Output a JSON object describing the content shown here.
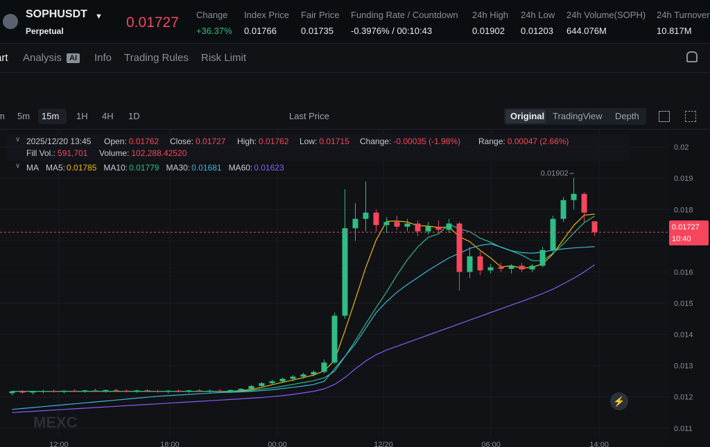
{
  "header": {
    "symbol": "SOPHUSDT",
    "contract": "Perpetual",
    "price": "0.01727",
    "stats": [
      {
        "label": "Change",
        "value": "+36.37%"
      },
      {
        "label": "Index Price",
        "value": "0.01766"
      },
      {
        "label": "Fair Price",
        "value": "0.01735"
      },
      {
        "label": "Funding Rate / Countdown",
        "value": "-0.3976% / 00:10:43"
      },
      {
        "label": "24h High",
        "value": "0.01902"
      },
      {
        "label": "24h Low",
        "value": "0.01203"
      },
      {
        "label": "24h Volume(SOPH)",
        "value": "644.076M"
      },
      {
        "label": "24h Turnover",
        "value": "10.817M"
      }
    ]
  },
  "tabs": [
    "art",
    "Analysis",
    "AI",
    "Info",
    "Trading Rules",
    "Risk Limit"
  ],
  "toolbar": {
    "intervals": [
      "m",
      "5m",
      "15m",
      "1H",
      "4H",
      "1D"
    ],
    "price_type": "Last Price",
    "views": [
      "Original",
      "TradingView",
      "Depth"
    ]
  },
  "chart_data": {
    "type": "candlestick",
    "legend": {
      "time": "2025/12/20 13:45",
      "fields": [
        {
          "label": "Open:",
          "value": "0.01762"
        },
        {
          "label": "Close:",
          "value": "0.01727"
        },
        {
          "label": "High:",
          "value": "0.01762"
        },
        {
          "label": "Low:",
          "value": "0.01715"
        },
        {
          "label": "Change:",
          "value": "-0.00035 (-1.98%)"
        },
        {
          "label": "Range:",
          "value": "0.00047 (2.66%)"
        },
        {
          "label": "Fill Vol.:",
          "value": "591,701"
        },
        {
          "label": "Volume:",
          "value": "102,288.42520"
        }
      ],
      "ma_title": "MA"
    },
    "x": [
      -2.25,
      -1.75,
      -1.25,
      -0.75,
      -0.25,
      0.25,
      0.75,
      1.25,
      1.75,
      2.25,
      2.75,
      3.25,
      3.75,
      4.25,
      4.75,
      5.25,
      5.75,
      6.25,
      6.75,
      7.25,
      7.75,
      8.25,
      8.75,
      9.25,
      9.75,
      10.25,
      10.75,
      11.25,
      11.75,
      12.25,
      12.75,
      13.25,
      13.75,
      14.25,
      14.75,
      15.25,
      15.75,
      16.25,
      16.75,
      17.25,
      17.75,
      18.25,
      18.75,
      19.25,
      19.75,
      20.25,
      20.75,
      21.25,
      21.75,
      22.25,
      22.75,
      23.25,
      23.75,
      24.25,
      24.75,
      25.25,
      25.75
    ],
    "open": [
      0.01212,
      0.01218,
      0.01214,
      0.01217,
      0.01219,
      0.01216,
      0.0122,
      0.01218,
      0.01221,
      0.01219,
      0.01222,
      0.0122,
      0.01218,
      0.01221,
      0.01219,
      0.01217,
      0.0122,
      0.01218,
      0.01221,
      0.01219,
      0.0122,
      0.01218,
      0.01222,
      0.01226,
      0.01235,
      0.01244,
      0.0125,
      0.01258,
      0.01265,
      0.01272,
      0.0128,
      0.0131,
      0.0146,
      0.0174,
      0.0177,
      0.0179,
      0.0175,
      0.0176,
      0.01745,
      0.01755,
      0.0173,
      0.01745,
      0.01735,
      0.01755,
      0.016,
      0.0165,
      0.01605,
      0.01615,
      0.0161,
      0.0162,
      0.01608,
      0.0162,
      0.0167,
      0.0177,
      0.0183,
      0.0185,
      0.01762
    ],
    "high": [
      0.0122,
      0.01222,
      0.0122,
      0.01223,
      0.01224,
      0.01221,
      0.01225,
      0.01223,
      0.01226,
      0.01224,
      0.01226,
      0.01224,
      0.01223,
      0.01225,
      0.01223,
      0.01222,
      0.01224,
      0.01223,
      0.01225,
      0.01224,
      0.01225,
      0.01224,
      0.01228,
      0.01238,
      0.01248,
      0.01255,
      0.01262,
      0.0127,
      0.01278,
      0.01285,
      0.0132,
      0.0147,
      0.01865,
      0.0182,
      0.0189,
      0.018,
      0.01775,
      0.0178,
      0.0177,
      0.01765,
      0.0176,
      0.01765,
      0.0177,
      0.0176,
      0.0168,
      0.01665,
      0.01625,
      0.0163,
      0.01625,
      0.0163,
      0.01625,
      0.0168,
      0.0178,
      0.0184,
      0.01902,
      0.01855,
      0.01762
    ],
    "low": [
      0.01205,
      0.0121,
      0.01208,
      0.01212,
      0.01214,
      0.01211,
      0.01215,
      0.01213,
      0.01216,
      0.01214,
      0.01217,
      0.01215,
      0.01213,
      0.01216,
      0.01214,
      0.01212,
      0.01215,
      0.01213,
      0.01216,
      0.01214,
      0.01215,
      0.01213,
      0.01218,
      0.01222,
      0.0123,
      0.01238,
      0.01244,
      0.0125,
      0.01258,
      0.01266,
      0.01275,
      0.01305,
      0.0145,
      0.017,
      0.0173,
      0.0173,
      0.01725,
      0.01735,
      0.0173,
      0.01715,
      0.0172,
      0.01725,
      0.01725,
      0.0154,
      0.0158,
      0.0159,
      0.01595,
      0.016,
      0.01595,
      0.016,
      0.016,
      0.01615,
      0.0166,
      0.0176,
      0.018,
      0.0176,
      0.01715
    ],
    "close": [
      0.01218,
      0.01214,
      0.01217,
      0.01219,
      0.01216,
      0.0122,
      0.01218,
      0.01221,
      0.01219,
      0.01222,
      0.0122,
      0.01218,
      0.01221,
      0.01219,
      0.01217,
      0.0122,
      0.01218,
      0.01221,
      0.01219,
      0.0122,
      0.01218,
      0.01222,
      0.01226,
      0.01235,
      0.01244,
      0.0125,
      0.01258,
      0.01265,
      0.01272,
      0.0128,
      0.0131,
      0.0146,
      0.0174,
      0.0177,
      0.0179,
      0.0175,
      0.0176,
      0.01745,
      0.01755,
      0.0173,
      0.01745,
      0.01735,
      0.01755,
      0.016,
      0.0165,
      0.01605,
      0.01615,
      0.0161,
      0.0162,
      0.01608,
      0.0162,
      0.0167,
      0.0177,
      0.0183,
      0.0185,
      0.0179,
      0.01727
    ],
    "series": [
      {
        "name": "MA5:",
        "color": "#f0b90b",
        "values": [
          0.01218,
          0.01218,
          0.01218,
          0.01218,
          0.01218,
          0.01218,
          0.01218,
          0.01218,
          0.01218,
          0.01218,
          0.01218,
          0.01218,
          0.01218,
          0.01218,
          0.01218,
          0.01218,
          0.01218,
          0.01218,
          0.01218,
          0.01218,
          0.01218,
          0.01218,
          0.0122,
          0.01224,
          0.01231,
          0.01239,
          0.01247,
          0.01254,
          0.01262,
          0.0127,
          0.01283,
          0.01317,
          0.01412,
          0.01512,
          0.01614,
          0.01702,
          0.01762,
          0.01763,
          0.0176,
          0.01748,
          0.01747,
          0.01742,
          0.01744,
          0.01713,
          0.01697,
          0.01669,
          0.01645,
          0.01616,
          0.0162,
          0.01612,
          0.01615,
          0.01626,
          0.01658,
          0.01704,
          0.01749,
          0.01782,
          0.01785
        ]
      },
      {
        "name": "MA10:",
        "color": "#2ebd85",
        "values": [
          0.01218,
          0.01218,
          0.01218,
          0.01218,
          0.01218,
          0.01218,
          0.01218,
          0.01218,
          0.01218,
          0.01218,
          0.01218,
          0.01218,
          0.01218,
          0.01218,
          0.01218,
          0.01218,
          0.01218,
          0.01218,
          0.01218,
          0.01218,
          0.01218,
          0.01218,
          0.01218,
          0.01221,
          0.01225,
          0.01229,
          0.01234,
          0.0124,
          0.01246,
          0.01252,
          0.01261,
          0.01282,
          0.01329,
          0.0138,
          0.01434,
          0.01486,
          0.01536,
          0.0159,
          0.01639,
          0.0168,
          0.01711,
          0.01722,
          0.01753,
          0.01738,
          0.01729,
          0.01708,
          0.01695,
          0.01679,
          0.01667,
          0.01654,
          0.01636,
          0.01636,
          0.0166,
          0.0169,
          0.01725,
          0.01758,
          0.01779
        ]
      },
      {
        "name": "MA30:",
        "color": "#3fb6d8",
        "values": [
          0.0116,
          0.01163,
          0.01166,
          0.01169,
          0.01172,
          0.01175,
          0.01178,
          0.01181,
          0.01184,
          0.01187,
          0.0119,
          0.01193,
          0.01196,
          0.01199,
          0.01202,
          0.01204,
          0.01206,
          0.01208,
          0.0121,
          0.01212,
          0.01214,
          0.01215,
          0.01216,
          0.01218,
          0.0122,
          0.01223,
          0.01227,
          0.01231,
          0.01235,
          0.0124,
          0.0125,
          0.0129,
          0.0133,
          0.0137,
          0.0142,
          0.0147,
          0.01505,
          0.01535,
          0.0156,
          0.01582,
          0.01605,
          0.01625,
          0.01645,
          0.0166,
          0.01675,
          0.01685,
          0.0169,
          0.0168,
          0.01668,
          0.01662,
          0.0166,
          0.01664,
          0.0167,
          0.01674,
          0.01677,
          0.01679,
          0.01681
        ]
      },
      {
        "name": "MA60:",
        "color": "#8b5cf6",
        "values": [
          0.0115,
          0.01152,
          0.01154,
          0.01156,
          0.01158,
          0.0116,
          0.01162,
          0.01164,
          0.01166,
          0.01168,
          0.0117,
          0.01172,
          0.01174,
          0.01176,
          0.01178,
          0.0118,
          0.01182,
          0.01184,
          0.01186,
          0.01188,
          0.0119,
          0.01192,
          0.01194,
          0.01196,
          0.01198,
          0.01201,
          0.01204,
          0.01208,
          0.01213,
          0.01218,
          0.01226,
          0.0124,
          0.01262,
          0.0129,
          0.01315,
          0.01335,
          0.0135,
          0.01362,
          0.01374,
          0.01386,
          0.01398,
          0.0141,
          0.01422,
          0.01434,
          0.01446,
          0.01458,
          0.0147,
          0.01482,
          0.01494,
          0.01506,
          0.01518,
          0.01531,
          0.01545,
          0.01562,
          0.0158,
          0.016,
          0.01623
        ]
      }
    ],
    "up_color": "#2ebd85",
    "down_color": "#f6465d",
    "ylim": [
      0.01073,
      0.02049
    ],
    "yticks": [
      0.011,
      0.012,
      0.013,
      0.014,
      0.015,
      0.016,
      0.017,
      0.018,
      0.019,
      0.02
    ],
    "xlim": [
      -2.83,
      29.33
    ],
    "xticks": [
      {
        "value": 0,
        "label": "12:00"
      },
      {
        "value": 5.33,
        "label": "18:00"
      },
      {
        "value": 10.5,
        "label": "00:00"
      },
      {
        "value": 15.6,
        "label": "12/20"
      },
      {
        "value": 20.77,
        "label": "06:00"
      },
      {
        "value": 25.97,
        "label": "14:00"
      }
    ],
    "grid": true,
    "countdown": "10:40",
    "high_marker": "0.01902",
    "watermark": "MEXC"
  }
}
